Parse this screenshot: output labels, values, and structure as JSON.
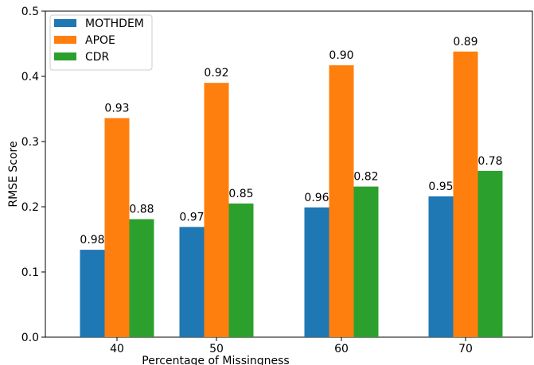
{
  "chart_data": {
    "type": "bar",
    "title": "",
    "xlabel": "Percentage of Missingness",
    "ylabel": "RMSE Score",
    "categories": [
      "40",
      "50",
      "60",
      "70"
    ],
    "ylim": [
      0,
      0.5
    ],
    "yticks": [
      "0.0",
      "0.1",
      "0.2",
      "0.3",
      "0.4",
      "0.5"
    ],
    "grid": false,
    "legend_position": "upper-left",
    "series": [
      {
        "name": "MOTHDEM",
        "color": "#1f77b4",
        "values": [
          0.134,
          0.169,
          0.199,
          0.216
        ],
        "labels": [
          "0.98",
          "0.97",
          "0.96",
          "0.95"
        ]
      },
      {
        "name": "APOE",
        "color": "#ff7f0e",
        "values": [
          0.336,
          0.39,
          0.417,
          0.438
        ],
        "labels": [
          "0.93",
          "0.92",
          "0.90",
          "0.89"
        ]
      },
      {
        "name": "CDR",
        "color": "#2ca02c",
        "values": [
          0.181,
          0.205,
          0.231,
          0.255
        ],
        "labels": [
          "0.88",
          "0.85",
          "0.82",
          "0.78"
        ]
      }
    ]
  }
}
